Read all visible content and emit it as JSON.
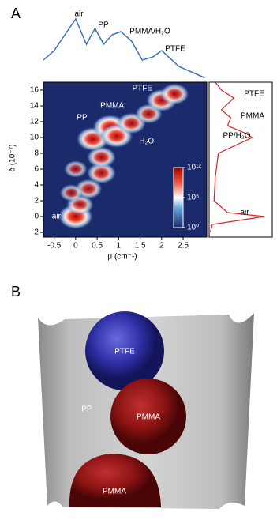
{
  "chart_data": {
    "type": "heatmap",
    "panel_label": "A",
    "xlabel": "μ (cm⁻¹)",
    "ylabel": "δ (10⁻⁷)",
    "xlim": [
      -0.75,
      3.05
    ],
    "ylim": [
      -2.6,
      17
    ],
    "xticks": [
      -0.5,
      0,
      0.5,
      1,
      1.5,
      2,
      2.5
    ],
    "yticks": [
      -2,
      0,
      2,
      4,
      6,
      8,
      10,
      12,
      14,
      16
    ],
    "peaks": {
      "x": [
        0,
        0.1,
        0.3,
        0.6,
        0.6,
        0.4,
        0.8,
        0.95,
        1.3,
        1.7,
        2.0,
        2.3,
        0.0,
        -0.1
      ],
      "y": [
        0,
        1.5,
        3.5,
        5.5,
        7.5,
        9.8,
        11.3,
        10.2,
        11.8,
        13,
        14.7,
        15.5,
        6,
        3
      ],
      "intensity": [
        12,
        8,
        8,
        9,
        9,
        11,
        12,
        11,
        9,
        8,
        10,
        9,
        6,
        6
      ]
    },
    "annotations": [
      "air",
      "PP",
      "PMMA",
      "H₂O",
      "PTFE"
    ],
    "clim": [
      0,
      12
    ],
    "cticks": [
      {
        "value": 0,
        "label": "10⁰"
      },
      {
        "value": 6,
        "label": "10⁶"
      },
      {
        "value": 12,
        "label": "10¹²"
      }
    ],
    "top_profile": {
      "x": [
        -0.75,
        -0.5,
        -0.25,
        0,
        0.25,
        0.45,
        0.65,
        0.85,
        1.05,
        1.3,
        1.55,
        1.8,
        2.0,
        2.4,
        3.0
      ],
      "values": [
        0.3,
        0.45,
        0.7,
        0.95,
        0.55,
        0.8,
        0.55,
        0.7,
        0.75,
        0.6,
        0.3,
        0.35,
        0.45,
        0.2,
        0.02
      ],
      "labels": [
        "air",
        "PP",
        "PMMA/H₂O",
        "PTFE"
      ]
    },
    "right_profile": {
      "y": [
        -2,
        -1,
        0,
        0.5,
        2,
        5,
        8,
        10,
        10.5,
        11.5,
        12.5,
        13.5,
        15,
        16,
        17
      ],
      "values": [
        0.02,
        0.05,
        0.9,
        0.3,
        0.08,
        0.1,
        0.15,
        0.7,
        0.6,
        0.3,
        0.35,
        0.2,
        0.4,
        0.2,
        0.1
      ],
      "labels": [
        "PTFE",
        "PMMA",
        "PP/H₂O",
        "air"
      ]
    }
  },
  "panel_b": {
    "label": "B",
    "labels": [
      "PTFE",
      "PP",
      "PMMA",
      "PMMA"
    ]
  }
}
